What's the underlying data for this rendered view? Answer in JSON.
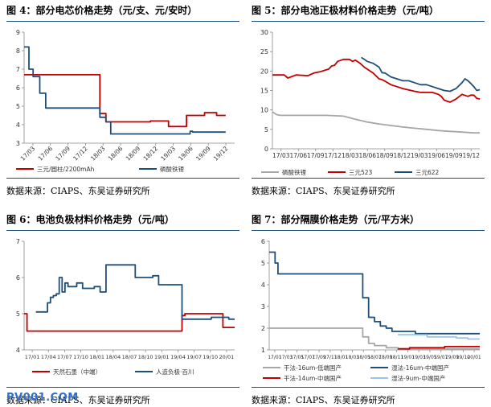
{
  "watermark": "PV001.COM",
  "colors": {
    "red": "#c00000",
    "navy": "#1f4e79",
    "gray": "#a6a6a6",
    "lightblue": "#9dc3e6",
    "rule": "#1f4e79"
  },
  "chart_data": [
    {
      "id": "fig4",
      "type": "line",
      "title": "图 4：部分电芯价格走势（元/支、元/安时）",
      "source": "数据来源：CIAPS、东吴证券研究所",
      "x_ticks": [
        "17/03",
        "17/06",
        "17/09",
        "17/12",
        "18/03",
        "18/06",
        "18/09",
        "18/12",
        "19/03",
        "19/06",
        "19/09",
        "19/12"
      ],
      "xlim": [
        0,
        35
      ],
      "ylim": [
        3,
        9
      ],
      "y_ticks": [
        3,
        4,
        5,
        6,
        7,
        8,
        9
      ],
      "grid": false,
      "legend_position": "bottom",
      "series": [
        {
          "name": "三元/圆柱/2200mAh",
          "color": "#c00000",
          "x": [
            0,
            12.6,
            12.6,
            13.6,
            13.6,
            21,
            21,
            24,
            24,
            26,
            26,
            27,
            27,
            30,
            30,
            32,
            32,
            33.5
          ],
          "y": [
            6.7,
            6.7,
            4.6,
            4.6,
            4.15,
            4.15,
            4.2,
            4.2,
            3.9,
            3.9,
            3.9,
            3.9,
            4.5,
            4.5,
            4.65,
            4.65,
            4.5,
            4.5
          ]
        },
        {
          "name": "磷酸铁锂",
          "color": "#1f4e79",
          "x": [
            0,
            0.8,
            0.8,
            1.5,
            1.5,
            2.6,
            2.6,
            3.6,
            3.6,
            12.6,
            12.6,
            13.6,
            13.6,
            14.4,
            14.4,
            24,
            24,
            27.6,
            27.6,
            28,
            28,
            33.5
          ],
          "y": [
            8.2,
            8.2,
            7,
            7,
            6.6,
            6.6,
            5.7,
            5.7,
            4.9,
            4.9,
            4.4,
            4.4,
            4.15,
            4.15,
            3.5,
            3.5,
            3.5,
            3.5,
            3.65,
            3.65,
            3.6,
            3.6
          ]
        }
      ]
    },
    {
      "id": "fig5",
      "type": "line",
      "title": "图 5：部分电池正极材料价格走势（元/吨）",
      "source": "数据来源：CIAPS、东吴证券研究所",
      "x_ticks": [
        "17/03",
        "17/06",
        "17/09",
        "17/12",
        "18/03",
        "18/06",
        "18/09",
        "18/12",
        "19/03",
        "19/06",
        "19/09",
        "19/12"
      ],
      "xlim": [
        0,
        35
      ],
      "ylim": [
        0,
        30
      ],
      "y_ticks": [
        0,
        5,
        10,
        15,
        20,
        25,
        30
      ],
      "grid": false,
      "legend_position": "bottom",
      "series": [
        {
          "name": "磷酸铁锂",
          "color": "#a6a6a6",
          "x": [
            0,
            0.7,
            1.3,
            3,
            6,
            9,
            12,
            14,
            16,
            18,
            20,
            22,
            24,
            26,
            28,
            30,
            32,
            34,
            35
          ],
          "y": [
            9.5,
            8.8,
            8.6,
            8.6,
            8.6,
            8.6,
            8.4,
            7.6,
            6.9,
            6.4,
            6,
            5.6,
            5.3,
            5,
            4.7,
            4.5,
            4.3,
            4.1,
            4.1
          ]
        },
        {
          "name": "三元523",
          "color": "#c00000",
          "x": [
            0,
            2,
            2.6,
            4,
            6,
            7,
            8,
            9.5,
            10,
            10.5,
            11,
            12,
            13,
            13.5,
            14,
            14.8,
            15.5,
            16,
            17,
            18,
            18.5,
            19,
            20,
            21,
            22,
            24,
            25,
            26,
            27,
            28,
            28.5,
            29,
            30,
            31,
            32,
            33,
            33.5,
            34,
            34.5,
            35
          ],
          "y": [
            19,
            19,
            18.2,
            19,
            18.8,
            19.5,
            19.8,
            20.5,
            21.3,
            21.5,
            22.5,
            23,
            23,
            22.5,
            22.8,
            22,
            21,
            20.5,
            19.5,
            18,
            17.8,
            17.4,
            16.5,
            16,
            15.5,
            14.8,
            14.5,
            14.5,
            14.5,
            14,
            13.5,
            12.5,
            12,
            12.8,
            14,
            13.5,
            13.8,
            13.8,
            13,
            12.8
          ]
        },
        {
          "name": "三元622",
          "color": "#1f4e79",
          "x": [
            15,
            15.5,
            16,
            17,
            18,
            18.5,
            19,
            20,
            21,
            22,
            23,
            24,
            25,
            26,
            27,
            28,
            29,
            30,
            31,
            32,
            32.5,
            33,
            33.5,
            34,
            34.5,
            35
          ],
          "y": [
            23.5,
            23,
            22.5,
            22,
            21,
            19.6,
            19.5,
            18.5,
            18,
            17.5,
            17.5,
            17,
            16.5,
            16.5,
            16,
            15.5,
            15,
            14.8,
            15.5,
            17,
            18,
            17.5,
            16.8,
            16,
            15,
            15.2
          ]
        }
      ]
    },
    {
      "id": "fig6",
      "type": "line",
      "title": "图 6：电池负极材料价格走势（元/吨）",
      "source": "数据来源：CIAPS、东吴证券研究所",
      "x_ticks": [
        "17/01",
        "17/04",
        "17/07",
        "17/10",
        "18/01",
        "18/04",
        "18/07",
        "18/10",
        "19/01",
        "19/04",
        "19/07",
        "19/10",
        "20/01"
      ],
      "xlim": [
        0,
        36
      ],
      "ylim": [
        4,
        7
      ],
      "y_ticks": [
        4,
        5,
        6,
        7
      ],
      "grid": false,
      "legend_position": "bottom",
      "series": [
        {
          "name": "天然石墨（中端）",
          "color": "#c00000",
          "x": [
            0,
            0.5,
            0.5,
            27,
            27,
            27.5,
            27.5,
            34,
            34,
            36
          ],
          "y": [
            5,
            5,
            4.52,
            4.52,
            4.95,
            4.95,
            5,
            5,
            4.62,
            4.62
          ]
        },
        {
          "name": "人造负极·百川",
          "color": "#1f4e79",
          "x": [
            2,
            4,
            4,
            4.5,
            4.5,
            5,
            5,
            5.5,
            5.5,
            6,
            6,
            6.5,
            6.5,
            7,
            7,
            7.5,
            7.5,
            9,
            9,
            10,
            10,
            12,
            12,
            13,
            13,
            14,
            14,
            19,
            19,
            22,
            22,
            23,
            23,
            27,
            27,
            32,
            32,
            35,
            35,
            36
          ],
          "y": [
            5.05,
            5.05,
            5.3,
            5.3,
            5.45,
            5.45,
            5.5,
            5.5,
            5.55,
            5.55,
            6,
            6,
            5.6,
            5.6,
            5.85,
            5.85,
            5.75,
            5.75,
            5.85,
            5.85,
            5.7,
            5.7,
            5.75,
            5.75,
            5.6,
            5.6,
            6.35,
            6.35,
            6,
            6,
            6.05,
            6.05,
            5.8,
            5.8,
            4.85,
            4.85,
            4.9,
            4.9,
            4.85,
            4.85
          ]
        }
      ]
    },
    {
      "id": "fig7",
      "type": "line",
      "title": "图 7：部分隔膜价格走势（元/平方米）",
      "source": "数据来源：CIAPS、东吴证券研究所",
      "x_ticks": [
        "17/01",
        "17/03",
        "17/05",
        "17/07",
        "17/09",
        "17/11",
        "18/01",
        "18/03",
        "18/05",
        "18/07",
        "18/09",
        "18/11",
        "19/01",
        "19/03",
        "19/05",
        "19/07",
        "19/09",
        "19/10",
        "20/01"
      ],
      "xlim": [
        0,
        36
      ],
      "ylim": [
        1,
        6
      ],
      "y_ticks": [
        1,
        2,
        3,
        4,
        5,
        6
      ],
      "grid": false,
      "legend_position": "bottom",
      "series": [
        {
          "name": "干法-16um-低端国产",
          "color": "#a6a6a6",
          "x": [
            0,
            16,
            16,
            17,
            17,
            18,
            18,
            20,
            20,
            22,
            22,
            36
          ],
          "y": [
            2,
            2,
            1.6,
            1.6,
            1.3,
            1.3,
            1.2,
            1.2,
            1.1,
            1.1,
            1.05,
            1.05
          ]
        },
        {
          "name": "湿法-16um-中端国产",
          "color": "#1f4e79",
          "x": [
            0,
            1,
            1,
            1.5,
            1.5,
            16,
            16,
            17,
            17,
            18,
            18,
            19,
            19,
            20,
            20,
            21,
            21,
            25,
            25,
            36
          ],
          "y": [
            5.5,
            5.5,
            5,
            5,
            4.5,
            4.5,
            3.4,
            3.4,
            2.5,
            2.5,
            2.3,
            2.3,
            2.1,
            2.1,
            2,
            2,
            1.85,
            1.85,
            1.75,
            1.75
          ]
        },
        {
          "name": "干法-14um-中端国产",
          "color": "#c00000",
          "x": [
            22,
            24,
            24,
            30,
            30,
            36
          ],
          "y": [
            1.05,
            1.05,
            1.1,
            1.1,
            1.15,
            1.15
          ]
        },
        {
          "name": "湿法-9um-中端国产",
          "color": "#9dc3e6",
          "x": [
            22,
            27,
            27,
            32,
            32,
            34,
            34,
            36
          ],
          "y": [
            1.7,
            1.7,
            1.6,
            1.6,
            1.55,
            1.55,
            1.5,
            1.5
          ]
        }
      ]
    }
  ]
}
